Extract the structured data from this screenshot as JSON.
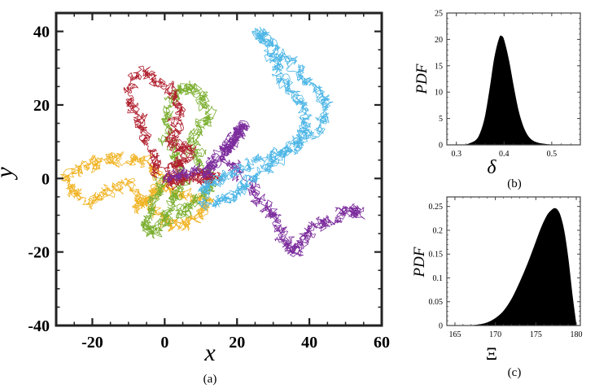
{
  "chart_data": [
    {
      "id": "a",
      "type": "line",
      "panel_label": "(a)",
      "xlabel": "x",
      "ylabel": "y",
      "xlim": [
        -30,
        60
      ],
      "ylim": [
        -40,
        45
      ],
      "xticks": [
        -20,
        0,
        20,
        40,
        60
      ],
      "yticks": [
        -40,
        -20,
        0,
        20,
        40
      ],
      "xtick_labels": [
        "-20",
        "0",
        "20",
        "40",
        "60"
      ],
      "ytick_labels": [
        "-40",
        "-20",
        "0",
        "20",
        "40"
      ],
      "grid": false,
      "legend": "none",
      "series": [
        {
          "color": "#F0B323",
          "x": [
            0,
            -4,
            -9,
            -14,
            -18,
            -23,
            -27,
            -25,
            -20,
            -15,
            -10,
            -6,
            -2,
            2,
            6,
            10,
            12,
            8,
            3,
            -1,
            -3,
            -6,
            -8
          ],
          "y": [
            0,
            3,
            6,
            5,
            4,
            3,
            0,
            -4,
            -6,
            -3,
            -1,
            -5,
            -10,
            -13,
            -12,
            -10,
            -6,
            -5,
            -4,
            -2,
            -4,
            -6,
            -8
          ]
        },
        {
          "color": "#7AAE2E",
          "x": [
            0,
            -2,
            -4,
            -6,
            -3,
            0,
            2,
            3,
            5,
            3,
            1,
            0,
            2,
            5,
            8,
            10,
            12,
            10,
            7,
            9,
            12,
            13,
            10,
            6,
            4
          ],
          "y": [
            0,
            -4,
            -8,
            -13,
            -15,
            -12,
            -8,
            -4,
            0,
            5,
            10,
            16,
            22,
            24,
            25,
            22,
            18,
            14,
            10,
            6,
            2,
            -2,
            -5,
            -8,
            -10
          ]
        },
        {
          "color": "#B01F2E",
          "x": [
            0,
            -2,
            -4,
            -6,
            -8,
            -10,
            -7,
            -3,
            2,
            4,
            3,
            1,
            4,
            7,
            5,
            3,
            2,
            3,
            5,
            8,
            10,
            12,
            15
          ],
          "y": [
            0,
            3,
            8,
            13,
            18,
            23,
            29,
            27,
            24,
            20,
            15,
            10,
            9,
            8,
            5,
            3,
            0,
            -1,
            0,
            1,
            0,
            0,
            0
          ]
        },
        {
          "color": "#7B2B9C",
          "x": [
            0,
            4,
            8,
            12,
            13,
            15,
            17,
            19,
            20,
            22,
            20,
            18,
            17,
            20,
            24,
            27,
            30,
            32,
            34,
            36,
            38,
            40,
            44,
            48,
            52,
            54
          ],
          "y": [
            0,
            1,
            2,
            2,
            4,
            6,
            8,
            10,
            12,
            14,
            13,
            10,
            6,
            2,
            -3,
            -7,
            -10,
            -14,
            -18,
            -20,
            -17,
            -14,
            -12,
            -10,
            -8,
            -10
          ]
        },
        {
          "color": "#4DB6E6",
          "x": [
            10,
            15,
            19,
            22,
            25,
            30,
            35,
            38,
            39,
            38,
            35,
            32,
            30,
            28,
            26,
            28,
            32,
            36,
            40,
            44,
            45,
            42,
            38,
            34,
            30,
            25,
            20,
            15,
            12,
            10
          ],
          "y": [
            -8,
            -6,
            -4,
            -2,
            0,
            4,
            8,
            12,
            16,
            20,
            24,
            28,
            32,
            36,
            40,
            38,
            34,
            30,
            26,
            22,
            18,
            14,
            10,
            8,
            6,
            4,
            2,
            0,
            -2,
            -4
          ]
        }
      ]
    },
    {
      "id": "b",
      "type": "area",
      "panel_label": "(b)",
      "xlabel": "δ",
      "ylabel": "PDF",
      "xlim": [
        0.28,
        0.56
      ],
      "ylim": [
        0,
        25
      ],
      "xticks": [
        0.3,
        0.4,
        0.5
      ],
      "yticks": [
        0,
        5,
        10,
        15,
        20,
        25
      ],
      "xtick_labels": [
        "0.3",
        "0.4",
        "0.5"
      ],
      "ytick_labels": [
        "0",
        "5",
        "10",
        "15",
        "20",
        "25"
      ],
      "grid": false,
      "legend": "none",
      "x": [
        0.32,
        0.34,
        0.35,
        0.36,
        0.37,
        0.38,
        0.39,
        0.395,
        0.4,
        0.41,
        0.42,
        0.43,
        0.44,
        0.45,
        0.46,
        0.47,
        0.48,
        0.5
      ],
      "y": [
        0,
        0.8,
        2.2,
        5.2,
        10.5,
        16.5,
        20.2,
        20.6,
        19.8,
        16.0,
        11.0,
        6.5,
        3.5,
        1.7,
        0.8,
        0.4,
        0.2,
        0
      ]
    },
    {
      "id": "c",
      "type": "area",
      "panel_label": "(c)",
      "xlabel": "Ξ",
      "ylabel": "PDF",
      "xlim": [
        164,
        180.5
      ],
      "ylim": [
        0,
        0.27
      ],
      "xticks": [
        165,
        170,
        175,
        180
      ],
      "yticks": [
        0,
        0.05,
        0.1,
        0.15,
        0.2,
        0.25
      ],
      "xtick_labels": [
        "165",
        "170",
        "175",
        "180"
      ],
      "ytick_labels": [
        "0",
        "0.05",
        "0.1",
        "0.15",
        "0.2",
        "0.25"
      ],
      "grid": false,
      "legend": "none",
      "x": [
        167,
        168,
        169,
        170,
        171,
        172,
        173,
        174,
        175,
        175.5,
        176,
        176.5,
        177,
        177.3,
        177.6,
        178,
        178.5,
        179,
        179.5,
        180
      ],
      "y": [
        0,
        0.002,
        0.006,
        0.015,
        0.03,
        0.055,
        0.09,
        0.13,
        0.175,
        0.198,
        0.218,
        0.234,
        0.243,
        0.246,
        0.244,
        0.232,
        0.198,
        0.14,
        0.065,
        0
      ]
    }
  ]
}
